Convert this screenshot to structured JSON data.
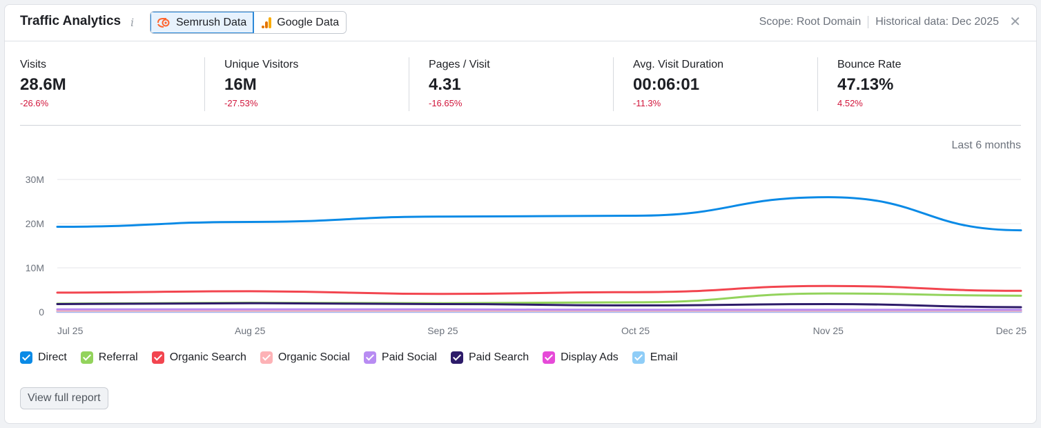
{
  "header": {
    "title": "Traffic Analytics",
    "info_icon": "info-icon",
    "toggles": [
      {
        "label": "Semrush Data",
        "icon": "semrush-logo-icon",
        "active": true
      },
      {
        "label": "Google Data",
        "icon": "google-analytics-icon",
        "active": false
      }
    ],
    "scope": "Scope: Root Domain",
    "historical": "Historical data: Dec 2025",
    "close_icon": "close-icon"
  },
  "metrics": [
    {
      "label": "Visits",
      "value": "28.6M",
      "delta": "-26.6%"
    },
    {
      "label": "Unique Visitors",
      "value": "16M",
      "delta": "-27.53%"
    },
    {
      "label": "Pages / Visit",
      "value": "4.31",
      "delta": "-16.65%"
    },
    {
      "label": "Avg. Visit Duration",
      "value": "00:06:01",
      "delta": "-11.3%"
    },
    {
      "label": "Bounce Rate",
      "value": "47.13%",
      "delta": "4.52%"
    }
  ],
  "period": "Last 6 months",
  "colors": {
    "accent": "#2b88d8",
    "negative": "#d1153b",
    "grid": "#e4e6ea"
  },
  "chart_data": {
    "type": "line",
    "y_ticks": [
      "0",
      "10M",
      "20M",
      "30M"
    ],
    "ylim": [
      0,
      30
    ],
    "y_unit": "M",
    "categories": [
      "Jul 25",
      "Aug 25",
      "Sep 25",
      "Oct 25",
      "Nov 25",
      "Dec 25"
    ],
    "grid": true,
    "legend_position": "bottom",
    "series": [
      {
        "name": "Direct",
        "color": "#0a8ae6",
        "values": [
          19.3,
          20.4,
          21.6,
          21.8,
          26.0,
          18.5
        ]
      },
      {
        "name": "Referral",
        "color": "#93d35c",
        "values": [
          1.9,
          2.1,
          2.0,
          2.2,
          4.2,
          3.7
        ]
      },
      {
        "name": "Organic Search",
        "color": "#f2454f",
        "values": [
          4.4,
          4.7,
          4.1,
          4.5,
          5.9,
          4.8
        ]
      },
      {
        "name": "Organic Social",
        "color": "#fdb2b6",
        "values": [
          0.3,
          0.3,
          0.3,
          0.3,
          0.3,
          0.3
        ]
      },
      {
        "name": "Paid Social",
        "color": "#b88cf2",
        "values": [
          0.6,
          0.6,
          0.6,
          0.5,
          0.5,
          0.5
        ]
      },
      {
        "name": "Paid Search",
        "color": "#2d1b69",
        "values": [
          1.8,
          2.0,
          1.8,
          1.5,
          1.8,
          1.1
        ]
      },
      {
        "name": "Display Ads",
        "color": "#e64ad8",
        "values": [
          0.05,
          0.05,
          0.05,
          0.05,
          0.05,
          0.05
        ]
      },
      {
        "name": "Email",
        "color": "#8fcdf7",
        "values": [
          0.1,
          0.1,
          0.1,
          0.1,
          0.1,
          0.1
        ]
      }
    ]
  },
  "footer": {
    "report_button": "View full report"
  }
}
